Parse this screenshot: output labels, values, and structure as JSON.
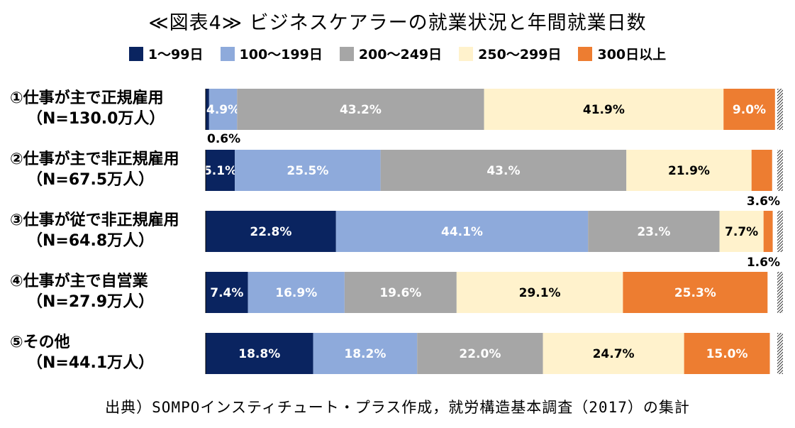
{
  "title": "≪図表4≫ ビジネスケアラーの就業状況と年間就業日数",
  "source": "出典）SOMPOインスティチュート・プラス作成，就労構造基本調査（2017）の集計",
  "legend": [
    {
      "label": "1～99日",
      "color": "#0a2460"
    },
    {
      "label": "100～199日",
      "color": "#8eaadb"
    },
    {
      "label": "200～249日",
      "color": "#a6a6a6"
    },
    {
      "label": "250～299日",
      "color": "#fff2cc"
    },
    {
      "label": "300日以上",
      "color": "#ed7d31"
    }
  ],
  "chart_data": {
    "type": "bar",
    "orientation": "horizontal-stacked-100",
    "title": "≪図表4≫ ビジネスケアラーの就業状況と年間就業日数",
    "categories": [
      {
        "label": "①仕事が主で正規雇用",
        "sub": "（N=130.0万人）"
      },
      {
        "label": "②仕事が主で非正規雇用",
        "sub": "（N=67.5万人）"
      },
      {
        "label": "③仕事が従で非正規雇用",
        "sub": "（N=64.8万人）"
      },
      {
        "label": "④仕事が主で自営業",
        "sub": "（N=27.9万人）"
      },
      {
        "label": "⑤その他",
        "sub": "（N=44.1万人）"
      }
    ],
    "series": [
      {
        "name": "1～99日",
        "color": "#0a2460",
        "label_color": "#ffffff",
        "values": [
          0.6,
          5.1,
          22.8,
          7.4,
          18.8
        ],
        "labels": [
          "0.6%",
          "5.1%",
          "22.8%",
          "7.4%",
          "18.8%"
        ]
      },
      {
        "name": "100～199日",
        "color": "#8eaadb",
        "label_color": "#ffffff",
        "values": [
          4.9,
          25.5,
          44.1,
          16.9,
          18.2
        ],
        "labels": [
          "4.9%",
          "25.5%",
          "44.1%",
          "16.9%",
          "18.2%"
        ]
      },
      {
        "name": "200～249日",
        "color": "#a6a6a6",
        "label_color": "#ffffff",
        "values": [
          43.2,
          43.0,
          23.0,
          19.6,
          22.0
        ],
        "labels": [
          "43.2%",
          "43.%",
          "23.%",
          "19.6%",
          "22.0%"
        ]
      },
      {
        "name": "250～299日",
        "color": "#fff2cc",
        "label_color": "#000000",
        "values": [
          41.9,
          21.9,
          7.7,
          29.1,
          24.7
        ],
        "labels": [
          "41.9%",
          "21.9%",
          "7.7%",
          "29.1%",
          "24.7%"
        ]
      },
      {
        "name": "300日以上",
        "color": "#ed7d31",
        "label_color": "#ffffff",
        "values": [
          9.0,
          3.6,
          1.6,
          25.3,
          15.0
        ],
        "labels": [
          "9.0%",
          "3.6%",
          "1.6%",
          "25.3%",
          "15.0%"
        ]
      }
    ],
    "outside_labels": [
      {
        "row": 0,
        "series": 0,
        "position": "below-left"
      },
      {
        "row": 1,
        "series": 4,
        "position": "below-right"
      },
      {
        "row": 2,
        "series": 4,
        "position": "below-right"
      }
    ],
    "xlim": [
      0,
      100
    ]
  }
}
